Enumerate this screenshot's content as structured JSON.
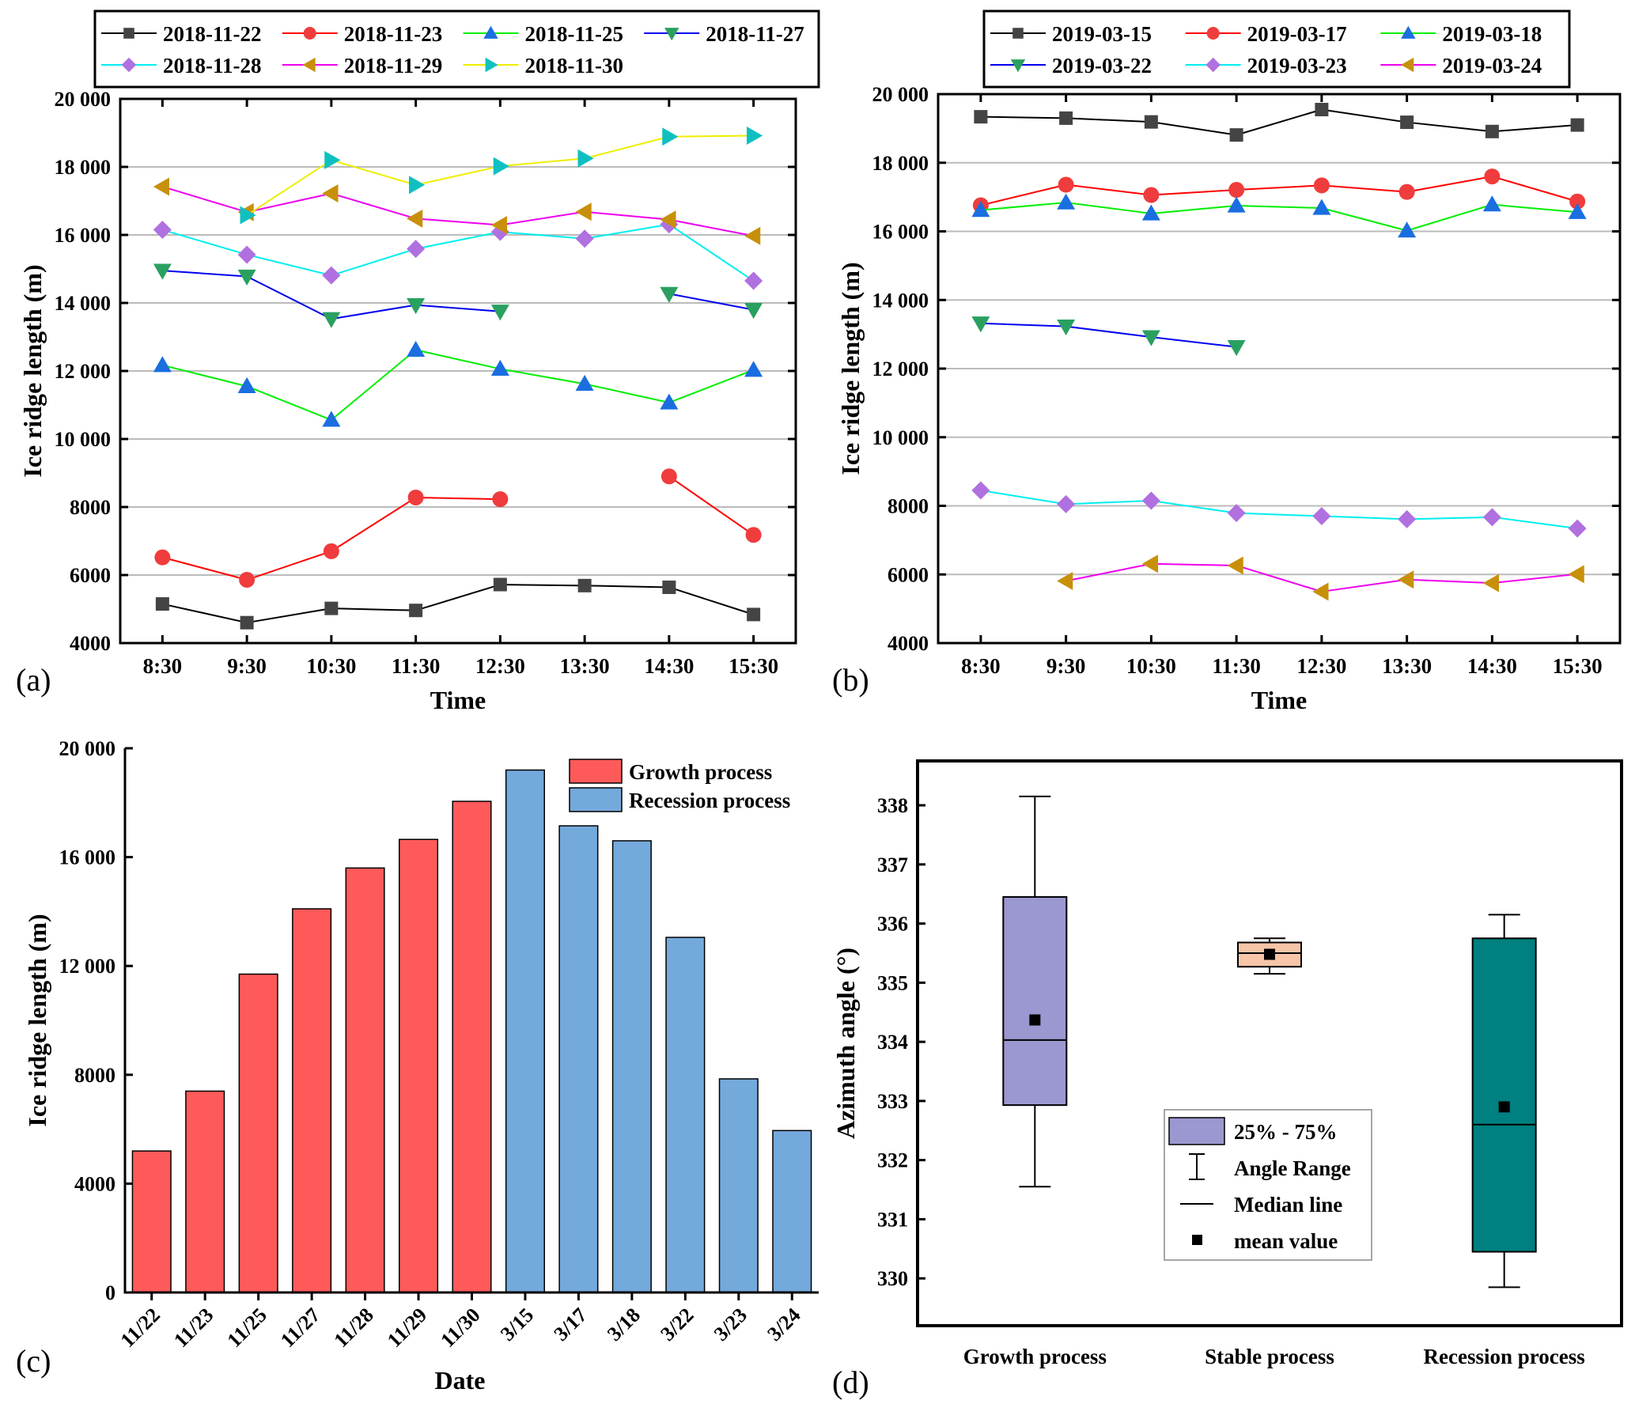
{
  "chart_data": [
    {
      "panel": "(a)",
      "type": "line",
      "xlabel": "Time",
      "ylabel": "Ice ridge length (m)",
      "ylim": [
        4000,
        20000
      ],
      "yticks": [
        "4000",
        "6000",
        "8000",
        "10 000",
        "12 000",
        "14 000",
        "16 000",
        "18 000",
        "20 000"
      ],
      "categories": [
        "8:30",
        "9:30",
        "10:30",
        "11:30",
        "12:30",
        "13:30",
        "14:30",
        "15:30"
      ],
      "grid": true,
      "legend": "top",
      "series": [
        {
          "name": "2018-11-22",
          "line": "#000000",
          "marker": "square",
          "mcolor": "#444444",
          "values": [
            5150,
            4600,
            5020,
            4960,
            5720,
            5690,
            5640,
            4840
          ]
        },
        {
          "name": "2018-11-23",
          "line": "#ff0000",
          "marker": "circle",
          "mcolor": "#f03c3c",
          "values": [
            6520,
            5860,
            6700,
            8280,
            8230,
            null,
            8900,
            7180
          ]
        },
        {
          "name": "2018-11-25",
          "line": "#00ee00",
          "marker": "triangle-up",
          "mcolor": "#1a6ee0",
          "values": [
            12170,
            11550,
            10560,
            12620,
            12060,
            11620,
            11070,
            12030
          ]
        },
        {
          "name": "2018-11-27",
          "line": "#0000ee",
          "marker": "triangle-down",
          "mcolor": "#2aa060",
          "values": [
            14950,
            14780,
            13530,
            13940,
            13750,
            null,
            14270,
            13800
          ]
        },
        {
          "name": "2018-11-28",
          "line": "#00eeee",
          "marker": "diamond",
          "mcolor": "#b070e0",
          "values": [
            16150,
            15420,
            14810,
            15590,
            16090,
            15890,
            16310,
            14650
          ]
        },
        {
          "name": "2018-11-29",
          "line": "#ee00ee",
          "marker": "triangle-left",
          "mcolor": "#c8900a",
          "values": [
            17420,
            16670,
            17220,
            16480,
            16290,
            16680,
            16450,
            15970
          ]
        },
        {
          "name": "2018-11-30",
          "line": "#eeee00",
          "marker": "triangle-right",
          "mcolor": "#10c0c0",
          "values": [
            null,
            16580,
            18200,
            17470,
            18020,
            18250,
            18890,
            18920
          ]
        }
      ]
    },
    {
      "panel": "(b)",
      "type": "line",
      "xlabel": "Time",
      "ylabel": "Ice ridge length (m)",
      "ylim": [
        4000,
        20000
      ],
      "yticks": [
        "4000",
        "6000",
        "8000",
        "10 000",
        "12 000",
        "14 000",
        "16 000",
        "18 000",
        "20 000"
      ],
      "categories": [
        "8:30",
        "9:30",
        "10:30",
        "11:30",
        "12:30",
        "13:30",
        "14:30",
        "15:30"
      ],
      "grid": true,
      "legend": "top",
      "series": [
        {
          "name": "2019-03-15",
          "line": "#000000",
          "marker": "square",
          "mcolor": "#444444",
          "values": [
            19340,
            19300,
            19190,
            18810,
            19550,
            19180,
            18910,
            19100
          ]
        },
        {
          "name": "2019-03-17",
          "line": "#ff0000",
          "marker": "circle",
          "mcolor": "#f03c3c",
          "values": [
            16760,
            17360,
            17060,
            17210,
            17340,
            17150,
            17600,
            16870
          ]
        },
        {
          "name": "2019-03-18",
          "line": "#00ee00",
          "marker": "triangle-up",
          "mcolor": "#1a6ee0",
          "values": [
            16620,
            16840,
            16520,
            16750,
            16680,
            16020,
            16780,
            16560
          ]
        },
        {
          "name": "2019-03-22",
          "line": "#0000ee",
          "marker": "triangle-down",
          "mcolor": "#2aa060",
          "values": [
            13320,
            13230,
            12920,
            12630,
            null,
            null,
            null,
            null
          ]
        },
        {
          "name": "2019-03-23",
          "line": "#00eeee",
          "marker": "diamond",
          "mcolor": "#b070e0",
          "values": [
            8450,
            8050,
            8150,
            7790,
            7700,
            7610,
            7670,
            7340
          ]
        },
        {
          "name": "2019-03-24",
          "line": "#ee00ee",
          "marker": "triangle-left",
          "mcolor": "#c8900a",
          "values": [
            null,
            5810,
            6310,
            6260,
            5500,
            5850,
            5750,
            6010
          ]
        }
      ]
    },
    {
      "panel": "(c)",
      "type": "bar",
      "xlabel": "Date",
      "ylabel": "Ice ridge length (m)",
      "ylim": [
        0,
        20000
      ],
      "yticks": [
        "0",
        "4000",
        "8000",
        "12 000",
        "16 000",
        "20 000"
      ],
      "categories": [
        "11/22",
        "11/23",
        "11/25",
        "11/27",
        "11/28",
        "11/29",
        "11/30",
        "3/15",
        "3/17",
        "3/18",
        "3/22",
        "3/23",
        "3/24"
      ],
      "values": [
        5200,
        7400,
        11700,
        14100,
        15600,
        16650,
        18050,
        19200,
        17150,
        16600,
        13050,
        7850,
        5950
      ],
      "groups": [
        0,
        0,
        0,
        0,
        0,
        0,
        0,
        1,
        1,
        1,
        1,
        1,
        1
      ],
      "legend": "top-right",
      "series": [
        {
          "name": "Growth process",
          "color": "#ff5a5a"
        },
        {
          "name": "Recession process",
          "color": "#74a9dc"
        }
      ]
    },
    {
      "panel": "(d)",
      "type": "box",
      "ylabel": "Azimuth angle (°)",
      "ylim": [
        329.2,
        338.75
      ],
      "yticks": [
        "330",
        "331",
        "332",
        "333",
        "334",
        "335",
        "336",
        "337",
        "338"
      ],
      "categories": [
        "Growth process",
        "Stable process",
        "Recession process"
      ],
      "boxes": [
        {
          "min": 331.55,
          "q1": 332.93,
          "median": 334.03,
          "q3": 336.45,
          "max": 338.15,
          "mean": 334.37,
          "color": "#9b97d0"
        },
        {
          "min": 335.15,
          "q1": 335.27,
          "median": 335.5,
          "q3": 335.68,
          "max": 335.75,
          "mean": 335.48,
          "color": "#f7c5a8"
        },
        {
          "min": 329.85,
          "q1": 330.45,
          "median": 332.6,
          "q3": 335.75,
          "max": 336.15,
          "mean": 332.9,
          "color": "#008080"
        }
      ],
      "legend": {
        "items": [
          "25% - 75%",
          "Angle Range",
          "Median line",
          "mean value"
        ],
        "placement": "center"
      }
    }
  ]
}
